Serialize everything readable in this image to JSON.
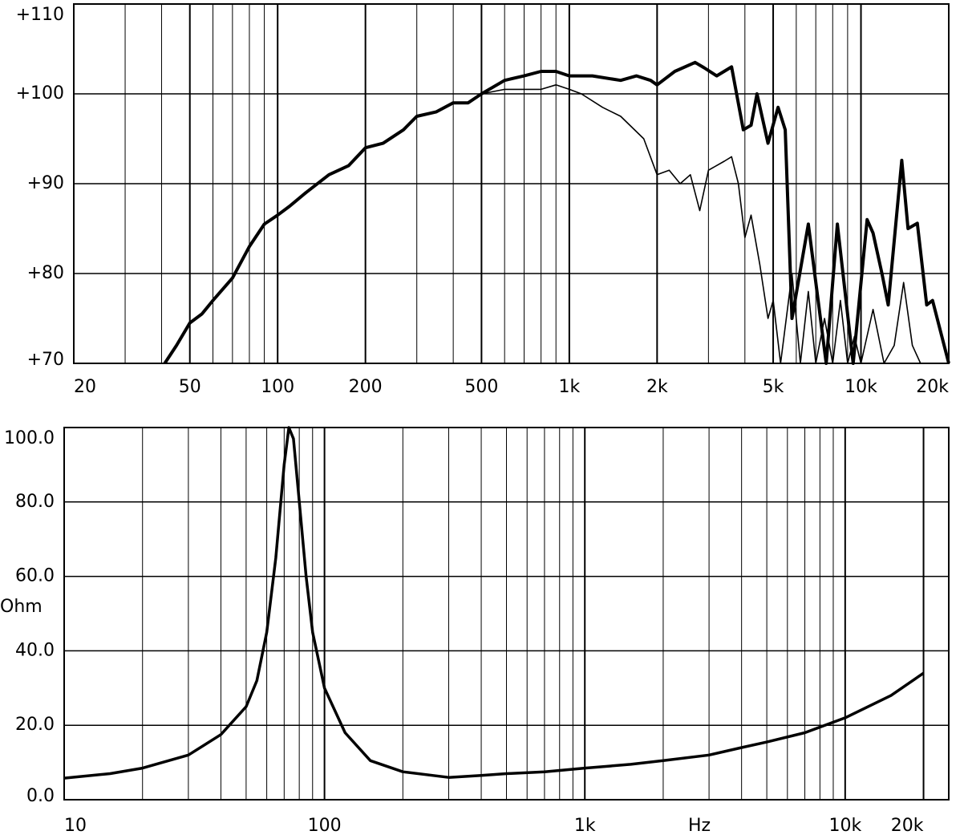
{
  "chart_data": [
    {
      "type": "line",
      "x_log": true,
      "grid": true,
      "xlim": [
        20,
        20000
      ],
      "ylim": [
        70,
        110
      ],
      "xticks": [
        20,
        50,
        100,
        200,
        500,
        {
          "value": 1000,
          "label": "1k"
        },
        {
          "value": 2000,
          "label": "2k"
        },
        {
          "value": 5000,
          "label": "5k"
        },
        {
          "value": 10000,
          "label": "10k"
        },
        {
          "value": 20000,
          "label": "20k"
        }
      ],
      "x_minor_ticks": [
        30,
        40,
        60,
        70,
        80,
        90,
        300,
        400,
        600,
        700,
        800,
        900,
        3000,
        4000,
        6000,
        7000,
        8000,
        9000
      ],
      "yticks": [
        {
          "value": 70,
          "label": "+70"
        },
        {
          "value": 80,
          "label": "+80"
        },
        {
          "value": 90,
          "label": "+90"
        },
        {
          "value": 100,
          "label": "+100"
        },
        {
          "value": 110,
          "label": "+110"
        }
      ],
      "series": [
        {
          "color": "#000000",
          "width": 4,
          "x": [
            41,
            45,
            50,
            55,
            60,
            70,
            80,
            90,
            100,
            110,
            125,
            150,
            175,
            200,
            230,
            270,
            300,
            350,
            400,
            450,
            500,
            600,
            700,
            800,
            900,
            1000,
            1200,
            1500,
            1700,
            1900,
            2000,
            2300,
            2700,
            2900,
            3200,
            3600,
            3950,
            4200,
            4400,
            4800,
            5200,
            5500,
            5800,
            6600,
            7600,
            8300,
            9400,
            10500,
            11000,
            11800,
            12400,
            13800,
            14500,
            15600,
            16800,
            17600,
            20000
          ],
          "values": [
            70,
            72,
            74.5,
            75.5,
            77,
            79.5,
            83,
            85.5,
            86.5,
            87.5,
            89,
            91,
            92,
            94,
            94.5,
            96,
            97.5,
            98,
            99,
            99,
            100,
            101.5,
            102,
            102.5,
            102.5,
            102,
            102,
            101.5,
            102,
            101.5,
            101,
            102.5,
            103.5,
            102.9,
            102,
            103,
            96,
            96.5,
            100,
            94.5,
            98.5,
            96,
            75,
            85.5,
            70,
            85.5,
            70,
            86,
            84.5,
            80,
            76.5,
            92.6,
            85,
            85.6,
            76.5,
            77,
            70
          ]
        },
        {
          "color": "#000000",
          "width": 1.6,
          "x": [
            500,
            600,
            700,
            800,
            900,
            1000,
            1100,
            1300,
            1500,
            1800,
            2000,
            2200,
            2400,
            2600,
            2800,
            3000,
            3400,
            3600,
            3800,
            4000,
            4200,
            4500,
            4800,
            5000,
            5300,
            5800,
            6200,
            6600,
            7000,
            7500,
            8000,
            8500,
            9000,
            9500,
            10000,
            11000,
            12000,
            13000,
            14000,
            15000,
            16000
          ],
          "values": [
            100,
            100.5,
            100.5,
            100.5,
            101,
            100.5,
            100,
            98.5,
            97.5,
            95,
            91,
            91.5,
            90,
            91,
            87,
            91.5,
            92.5,
            93,
            90,
            84,
            86.5,
            81,
            75,
            77,
            70,
            80,
            70,
            78,
            70,
            75,
            70,
            77,
            70,
            73,
            70,
            76,
            70,
            72,
            79,
            72,
            70
          ]
        }
      ]
    },
    {
      "type": "line",
      "x_log": true,
      "grid": true,
      "xlim": [
        10,
        25000
      ],
      "ylim": [
        0,
        100
      ],
      "x_label": "Hz",
      "y_label": "Ohm",
      "xticks": [
        10,
        100,
        {
          "value": 1000,
          "label": "1k"
        },
        {
          "value": 10000,
          "label": "10k"
        },
        {
          "value": 20000,
          "label": "20k"
        }
      ],
      "x_minor_ticks": [
        20,
        30,
        40,
        50,
        60,
        70,
        80,
        90,
        200,
        300,
        400,
        500,
        600,
        700,
        800,
        900,
        2000,
        3000,
        4000,
        5000,
        6000,
        7000,
        8000,
        9000
      ],
      "yticks": [
        {
          "value": 0,
          "label": "0.0"
        },
        {
          "value": 20,
          "label": "20.0"
        },
        {
          "value": 40,
          "label": "40.0"
        },
        {
          "value": 60,
          "label": "60.0"
        },
        {
          "value": 80,
          "label": "80.0"
        },
        {
          "value": 100,
          "label": "100.0"
        }
      ],
      "series": [
        {
          "color": "#000000",
          "width": 3.5,
          "x": [
            10,
            15,
            20,
            30,
            40,
            50,
            55,
            60,
            65,
            70,
            73,
            76,
            80,
            85,
            90,
            100,
            120,
            150,
            200,
            300,
            400,
            500,
            700,
            1000,
            1500,
            2000,
            3000,
            4000,
            5000,
            7000,
            10000,
            15000,
            20000
          ],
          "values": [
            5.8,
            7,
            8.5,
            12,
            17.5,
            25,
            32,
            45,
            65,
            90,
            100,
            97,
            80,
            60,
            45,
            30,
            18,
            10.5,
            7.5,
            6,
            6.5,
            7,
            7.5,
            8.5,
            9.5,
            10.5,
            12,
            14,
            15.5,
            18,
            22,
            28,
            34
          ]
        }
      ]
    }
  ]
}
